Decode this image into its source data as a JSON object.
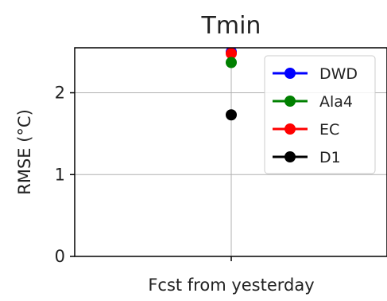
{
  "chart_data": {
    "type": "scatter",
    "title": "Tmin",
    "xlabel": "",
    "ylabel": "RMSE (°C)",
    "categories": [
      "Fcst from yesterday"
    ],
    "ylim": [
      0,
      2.55
    ],
    "yticks": [
      0,
      1,
      2
    ],
    "grid": true,
    "legend_position": "top-right",
    "series": [
      {
        "name": "DWD",
        "color": "#0000ff",
        "values": [
          2.5
        ]
      },
      {
        "name": "Ala4",
        "color": "#008000",
        "values": [
          2.37
        ]
      },
      {
        "name": "EC",
        "color": "#ff0000",
        "values": [
          2.48
        ]
      },
      {
        "name": "D1",
        "color": "#000000",
        "values": [
          1.73
        ]
      }
    ],
    "draw_order": [
      "DWD",
      "EC",
      "Ala4",
      "D1"
    ]
  }
}
